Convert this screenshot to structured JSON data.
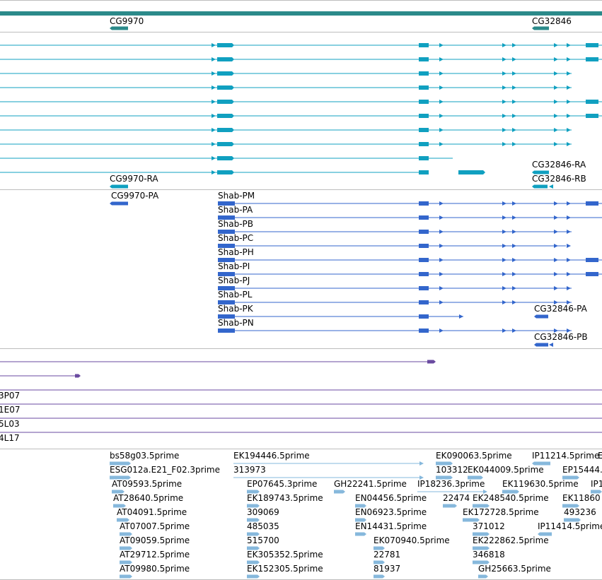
{
  "colors": {
    "gene_track": "#2b8a8a",
    "mrna": "#10a0c0",
    "protein": "#3366cc",
    "purple": "#6a4aa0",
    "est": "#86b8dc",
    "separator": "#bdbdbd"
  },
  "gene_labels": [
    "CG9970",
    "CG32846"
  ],
  "transcript_labels": [
    "CG32846-RA",
    "CG9970-RA",
    "CG32846-RB"
  ],
  "protein_labels": [
    "CG9970-PA",
    "Shab-PM",
    "Shab-PA",
    "Shab-PB",
    "Shab-PC",
    "Shab-PH",
    "Shab-PI",
    "Shab-PJ",
    "Shab-PL",
    "Shab-PK",
    "CG32846-PA",
    "Shab-PN",
    "CG32846-PB"
  ],
  "track_labels": [
    "3P07",
    "1E07",
    "5L03",
    "4L17"
  ],
  "est_labels": [
    "bs58g03.5prime",
    "EK194446.5prime",
    "EK090063.5prime",
    "IP11214.5prime",
    "E",
    "ESG012a.E21_F02.3prime",
    "313973",
    "103312",
    "EK044009.5prime",
    "EP15444.",
    "AT09593.5prime",
    "EP07645.3prime",
    "GH22241.5prime",
    "IP18236.3prime",
    "EK119630.5prime",
    "IP1",
    "AT28640.5prime",
    "EK189743.5prime",
    "EN04456.5prime",
    "22474",
    "EK248540.5prime",
    "EK11860",
    "AT04091.5prime",
    "309069",
    "EN06923.5prime",
    "EK172728.5prime",
    "493236",
    "AT07007.5prime",
    "485035",
    "EN14431.5prime",
    "371012",
    "IP11414.5prime",
    "AT09059.5prime",
    "515700",
    "EK070940.5prime",
    "EK222862.5prime",
    "AT29712.5prime",
    "EK305352.5prime",
    "22781",
    "346818",
    "AT09980.5prime",
    "EK152305.5prime",
    "81937",
    "GH25663.5prime"
  ]
}
